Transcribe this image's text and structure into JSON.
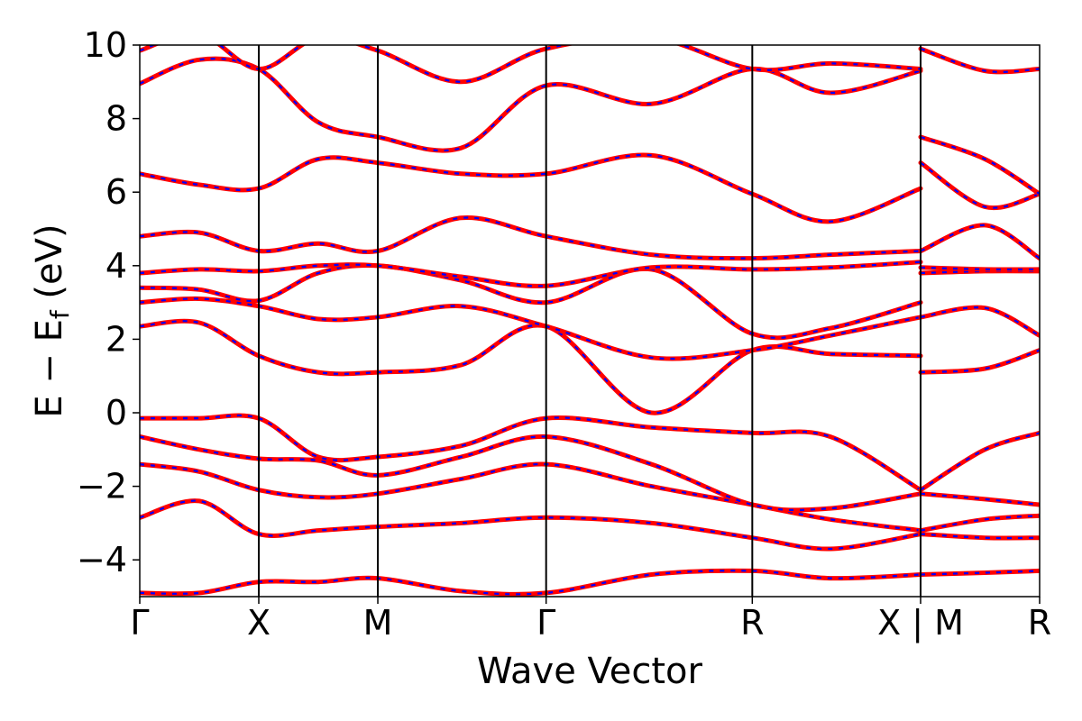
{
  "chart_data": {
    "type": "line",
    "xlabel": "Wave Vector",
    "ylabel": "E − E",
    "ylabel_sub": "f",
    "ylabel_unit": " (eV)",
    "ylim": [
      -5,
      10
    ],
    "yticks": [
      10,
      8,
      6,
      4,
      2,
      0,
      -2,
      -4
    ],
    "ytick_labels": [
      "10",
      "8",
      "6",
      "4",
      "2",
      "0",
      "−2",
      "−4"
    ],
    "kpoints": [
      {
        "label": "Γ",
        "x": 0.0
      },
      {
        "label": "X",
        "x": 0.5
      },
      {
        "label": "M",
        "x": 1.0
      },
      {
        "label": "Γ",
        "x": 1.707
      },
      {
        "label": "R",
        "x": 2.573
      },
      {
        "label": "X | M",
        "x": 3.28
      },
      {
        "label": "R",
        "x": 3.78
      }
    ],
    "xlim": [
      0.0,
      3.78
    ],
    "series_styles": [
      {
        "color": "#ff0000",
        "linestyle": "solid"
      },
      {
        "color": "#0000ff",
        "linestyle": "dashed"
      }
    ],
    "bands": [
      {
        "x": [
          0,
          0.25,
          0.5,
          0.75,
          1.0,
          1.35,
          1.707,
          2.15,
          2.573,
          2.9,
          3.28,
          3.28,
          3.55,
          3.78
        ],
        "y": [
          -4.9,
          -4.9,
          -4.6,
          -4.6,
          -4.5,
          -4.85,
          -4.9,
          -4.4,
          -4.3,
          -4.5,
          -4.4,
          -4.4,
          -4.35,
          -4.3
        ]
      },
      {
        "x": [
          0,
          0.25,
          0.5,
          0.75,
          1.0,
          1.35,
          1.707,
          2.15,
          2.573,
          2.9,
          3.28,
          3.28,
          3.55,
          3.78
        ],
        "y": [
          -2.85,
          -2.4,
          -3.3,
          -3.2,
          -3.1,
          -3.0,
          -2.85,
          -3.0,
          -3.4,
          -3.7,
          -3.3,
          -3.3,
          -3.4,
          -3.4
        ]
      },
      {
        "x": [
          0,
          0.25,
          0.5,
          0.75,
          1.0,
          1.35,
          1.707,
          2.15,
          2.573,
          2.9,
          3.28,
          3.28,
          3.55,
          3.78
        ],
        "y": [
          -1.4,
          -1.6,
          -2.1,
          -2.3,
          -2.2,
          -1.8,
          -1.4,
          -2.0,
          -2.5,
          -2.9,
          -3.2,
          -3.2,
          -2.9,
          -2.8
        ]
      },
      {
        "x": [
          0,
          0.25,
          0.5,
          0.75,
          1.0,
          1.35,
          1.707,
          2.15,
          2.573,
          2.9,
          3.28,
          3.28,
          3.55,
          3.78
        ],
        "y": [
          -0.65,
          -1.0,
          -1.25,
          -1.3,
          -1.7,
          -1.2,
          -0.65,
          -1.4,
          -2.5,
          -2.6,
          -2.2,
          -2.2,
          -2.35,
          -2.5
        ]
      },
      {
        "x": [
          0,
          0.25,
          0.5,
          0.75,
          1.0,
          1.35,
          1.707,
          2.15,
          2.573,
          2.9,
          3.28,
          3.28,
          3.55,
          3.78
        ],
        "y": [
          -0.15,
          -0.15,
          -0.15,
          -1.2,
          -1.2,
          -0.9,
          -0.15,
          -0.4,
          -0.55,
          -0.65,
          -2.1,
          -2.1,
          -1.0,
          -0.55
        ]
      },
      {
        "x": [
          0,
          0.25,
          0.5,
          0.75,
          1.0,
          1.35,
          1.707,
          2.15,
          2.573,
          2.9,
          3.28,
          3.28,
          3.55,
          3.78
        ],
        "y": [
          2.35,
          2.45,
          1.55,
          1.1,
          1.1,
          1.3,
          2.35,
          0.0,
          1.7,
          1.6,
          1.55,
          1.1,
          1.2,
          1.7
        ]
      },
      {
        "x": [
          0,
          0.25,
          0.5,
          0.75,
          1.0,
          1.35,
          1.707,
          2.15,
          2.573,
          2.9,
          3.28,
          3.28,
          3.55,
          3.78
        ],
        "y": [
          3.0,
          3.1,
          2.9,
          2.55,
          2.6,
          2.9,
          2.35,
          1.5,
          1.7,
          2.1,
          2.6,
          2.6,
          2.85,
          2.1
        ]
      },
      {
        "x": [
          0,
          0.25,
          0.5,
          0.75,
          1.0,
          1.35,
          1.707,
          2.15,
          2.573,
          2.9,
          3.28,
          3.28,
          3.55,
          3.78
        ],
        "y": [
          3.4,
          3.35,
          3.05,
          3.8,
          4.0,
          3.6,
          3.0,
          3.9,
          2.15,
          2.3,
          3.0,
          3.8,
          3.85,
          3.85
        ]
      },
      {
        "x": [
          0,
          0.25,
          0.5,
          0.75,
          1.0,
          1.35,
          1.707,
          2.15,
          2.573,
          2.9,
          3.28,
          3.28,
          3.55,
          3.78
        ],
        "y": [
          3.8,
          3.9,
          3.85,
          4.0,
          4.0,
          3.7,
          3.45,
          3.95,
          3.9,
          3.95,
          4.1,
          3.95,
          3.9,
          3.9
        ]
      },
      {
        "x": [
          0,
          0.25,
          0.5,
          0.75,
          1.0,
          1.35,
          1.707,
          2.15,
          2.573,
          2.9,
          3.28,
          3.28,
          3.55,
          3.78
        ],
        "y": [
          4.8,
          4.9,
          4.4,
          4.6,
          4.4,
          5.3,
          4.8,
          4.3,
          4.2,
          4.3,
          4.4,
          4.4,
          5.1,
          4.2
        ]
      },
      {
        "x": [
          0,
          0.25,
          0.5,
          0.75,
          1.0,
          1.35,
          1.707,
          2.15,
          2.573,
          2.9,
          3.28,
          3.28,
          3.55,
          3.78
        ],
        "y": [
          6.5,
          6.2,
          6.1,
          6.9,
          6.8,
          6.5,
          6.5,
          7.0,
          5.95,
          5.2,
          6.1,
          6.8,
          5.6,
          5.95
        ]
      },
      {
        "x": [
          0,
          0.25,
          0.5,
          0.75,
          1.0,
          1.35,
          1.707,
          2.15,
          2.573,
          2.9,
          3.28,
          3.28,
          3.55,
          3.78
        ],
        "y": [
          8.95,
          9.6,
          9.35,
          7.9,
          7.5,
          7.2,
          8.9,
          8.4,
          9.35,
          8.7,
          9.3,
          7.5,
          6.9,
          5.95
        ]
      },
      {
        "x": [
          0,
          0.25,
          0.5,
          0.75,
          1.0,
          1.35,
          1.707,
          2.15,
          2.573,
          2.9,
          3.28,
          3.28,
          3.55,
          3.78
        ],
        "y": [
          9.85,
          10.3,
          9.35,
          10.2,
          9.85,
          9.0,
          9.9,
          10.2,
          9.35,
          9.5,
          9.35,
          9.9,
          9.3,
          9.35
        ]
      }
    ]
  }
}
